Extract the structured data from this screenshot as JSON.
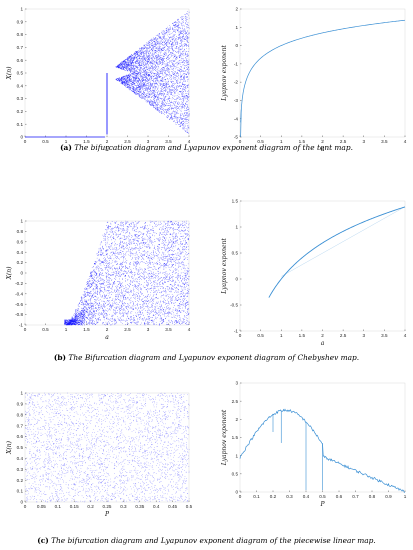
{
  "chart_data": [
    {
      "type": "scatter",
      "title": "",
      "xlabel": "u",
      "ylabel": "X(n)",
      "xlim": [
        0,
        4
      ],
      "ylim": [
        0,
        1
      ],
      "xticks": [
        "0",
        "0.5",
        "1",
        "1.5",
        "2",
        "2.5",
        "3",
        "3.5",
        "4"
      ],
      "yticks": [
        "0",
        "0.1",
        "0.2",
        "0.3",
        "0.4",
        "0.5",
        "0.6",
        "0.7",
        "0.8",
        "0.9",
        "1"
      ],
      "series": [
        {
          "points": [
            [
              0,
              0
            ],
            [
              1,
              0
            ],
            [
              1.9,
              0
            ],
            [
              2,
              0.5
            ],
            [
              2,
              0.2
            ],
            [
              2.1,
              0.48
            ],
            [
              2.5,
              0.6
            ],
            [
              3,
              0.8
            ],
            [
              3.5,
              0.9
            ],
            [
              4,
              0.99
            ],
            [
              4,
              0.02
            ],
            [
              3,
              0.2
            ]
          ]
        }
      ],
      "color": "#1a1aff"
    },
    {
      "type": "line",
      "title": "",
      "xlabel": "u",
      "ylabel": "Lyapnov exponent",
      "xlim": [
        0,
        4
      ],
      "ylim": [
        -5,
        2
      ],
      "xticks": [
        "0",
        "0.5",
        "1",
        "1.5",
        "2",
        "2.5",
        "3",
        "3.5",
        "4"
      ],
      "yticks": [
        "-5",
        "-4",
        "-3",
        "-2",
        "-1",
        "0",
        "1",
        "2"
      ],
      "x": [
        0.01,
        0.05,
        0.1,
        0.2,
        0.3,
        0.5,
        0.75,
        1,
        1.5,
        2,
        2.5,
        3,
        3.5,
        4
      ],
      "y": [
        -4.6,
        -3.0,
        -2.3,
        -1.61,
        -1.2,
        -0.69,
        -0.29,
        0,
        0.41,
        0.69,
        0.92,
        1.1,
        1.25,
        1.39
      ],
      "color": "#3a8fd4"
    },
    {
      "type": "scatter",
      "title": "",
      "xlabel": "a",
      "ylabel": "X(n)",
      "xlim": [
        0,
        4
      ],
      "ylim": [
        -1,
        1
      ],
      "xticks": [
        "0",
        "0.5",
        "1",
        "1.5",
        "2",
        "2.5",
        "3",
        "3.5",
        "4"
      ],
      "yticks": [
        "-1",
        "-0.8",
        "-0.6",
        "-0.4",
        "-0.2",
        "0",
        "0.2",
        "0.4",
        "0.6",
        "0.8",
        "1"
      ],
      "series": [
        {
          "points": [
            [
              1,
              -1
            ],
            [
              1.2,
              -0.9
            ],
            [
              1.5,
              -0.3
            ],
            [
              2,
              1
            ],
            [
              2,
              -1
            ],
            [
              3,
              0.5
            ],
            [
              4,
              -1
            ],
            [
              4,
              1
            ]
          ]
        }
      ],
      "color": "#1a1aff"
    },
    {
      "type": "line",
      "title": "",
      "xlabel": "a",
      "ylabel": "Lyapnov exponent",
      "xlim": [
        0,
        4
      ],
      "ylim": [
        -1,
        1.5
      ],
      "xticks": [
        "0",
        "0.5",
        "1",
        "1.5",
        "2",
        "2.5",
        "3",
        "3.5",
        "4"
      ],
      "yticks": [
        "-1",
        "-0.5",
        "0",
        "0.5",
        "1",
        "1.5"
      ],
      "x": [
        0.7,
        0.8,
        0.9,
        1,
        1.25,
        1.5,
        2,
        2.5,
        3,
        3.5,
        4
      ],
      "y": [
        -0.69,
        -0.45,
        -0.15,
        0,
        0.22,
        0.41,
        0.69,
        0.92,
        1.1,
        1.25,
        1.39
      ],
      "color": "#3a8fd4"
    },
    {
      "type": "scatter",
      "title": "",
      "xlabel": "P",
      "ylabel": "X(n)",
      "xlim": [
        0,
        0.5
      ],
      "ylim": [
        0,
        1
      ],
      "xticks": [
        "0",
        "0.05",
        "0.1",
        "0.15",
        "0.2",
        "0.25",
        "0.3",
        "0.35",
        "0.4",
        "0.45",
        "0.5"
      ],
      "yticks": [
        "0",
        "0.1",
        "0.2",
        "0.3",
        "0.4",
        "0.5",
        "0.6",
        "0.7",
        "0.8",
        "0.9",
        "1"
      ],
      "series": [
        {
          "points": [
            [
              0,
              0
            ],
            [
              0,
              1
            ],
            [
              0.25,
              0.5
            ],
            [
              0.5,
              0
            ],
            [
              0.5,
              1
            ]
          ]
        }
      ],
      "color": "#1a1aff"
    },
    {
      "type": "line",
      "title": "",
      "xlabel": "P",
      "ylabel": "Lyapnov exponent",
      "xlim": [
        0,
        1
      ],
      "ylim": [
        0,
        3
      ],
      "xticks": [
        "0",
        "0.1",
        "0.2",
        "0.3",
        "0.4",
        "0.5",
        "0.6",
        "0.7",
        "0.8",
        "0.9",
        "1"
      ],
      "yticks": [
        "0",
        "0.5",
        "1",
        "1.5",
        "2",
        "2.5",
        "3"
      ],
      "x": [
        0,
        0.05,
        0.1,
        0.15,
        0.2,
        0.25,
        0.3,
        0.35,
        0.4,
        0.45,
        0.5,
        0.55,
        0.6,
        0.65,
        0.7,
        0.75,
        0.8,
        0.85,
        0.9,
        0.95,
        1
      ],
      "y": [
        0.95,
        1.35,
        1.7,
        2.0,
        2.18,
        2.27,
        2.25,
        2.05,
        1.65,
        1.35,
        1.0,
        0.92,
        0.86,
        0.72,
        0.6,
        0.5,
        0.4,
        0.3,
        0.2,
        0.1,
        0.02
      ],
      "spikes": [
        [
          0.2,
          1.65
        ],
        [
          0.25,
          1.35
        ],
        [
          0.4,
          0.05
        ],
        [
          0.5,
          0.05
        ]
      ],
      "color": "#3a8fd4"
    }
  ],
  "captions": [
    {
      "label": "(a)",
      "text": "The bifurcation diagram and Lyapunov exponent diagram of the tent map."
    },
    {
      "label": "(b)",
      "text": "The Bifurcation diagram and Lyapunov exponent diagram of Chebyshev map."
    },
    {
      "label": "(c)",
      "text": "The bifurcation diagram and Lyapunov exponent diagram of the piecewise linear map."
    }
  ]
}
